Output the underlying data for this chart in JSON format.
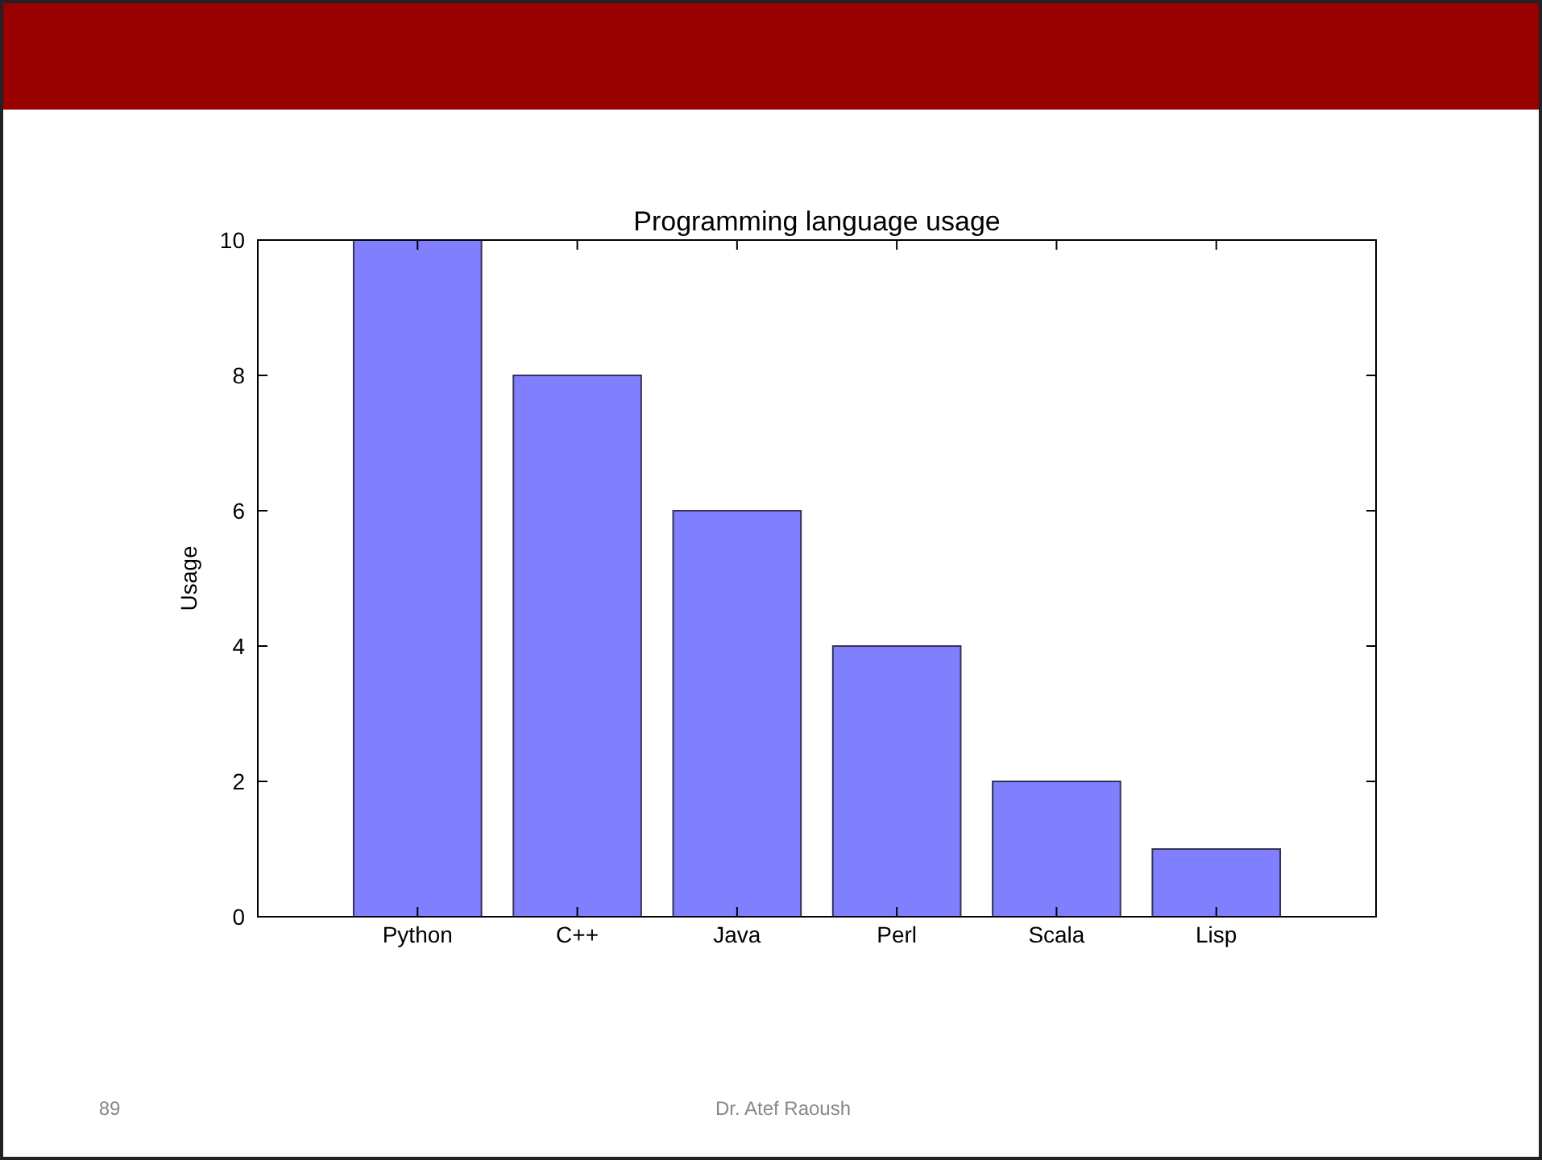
{
  "chart_data": {
    "type": "bar",
    "title": "Programming language usage",
    "ylabel": "Usage",
    "categories": [
      "Python",
      "C++",
      "Java",
      "Perl",
      "Scala",
      "Lisp"
    ],
    "values": [
      10,
      8,
      6,
      4,
      2,
      1
    ],
    "color": "#8080ff",
    "ylim": [
      0,
      10
    ],
    "yticks": [
      0,
      2,
      4,
      6,
      8,
      10
    ],
    "grid": false,
    "annotations": [
      "89",
      "Dr. Atef Raoush"
    ]
  }
}
